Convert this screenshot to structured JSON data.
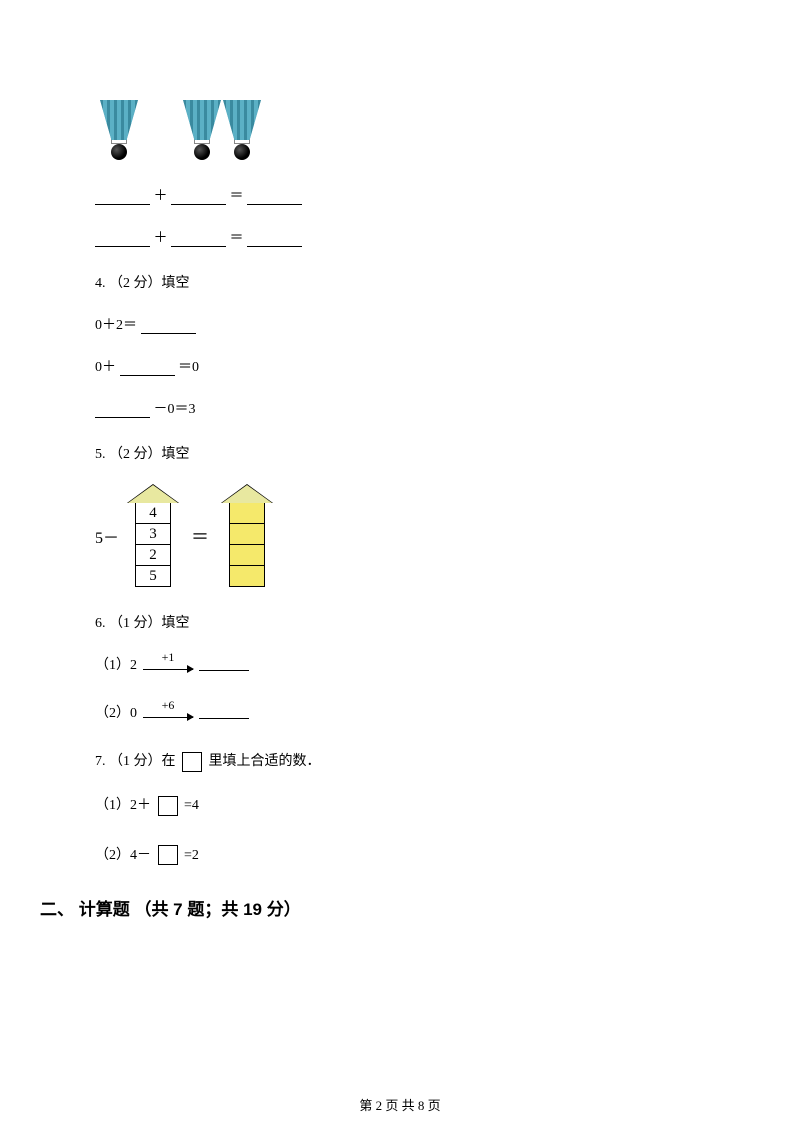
{
  "shuttlecocks": {
    "group1_count": 1,
    "group2_count": 2,
    "cap_color": "#4a9db5",
    "ball_color": "#000000"
  },
  "equations": {
    "line1": {
      "op": "＋",
      "eq": "＝"
    },
    "line2": {
      "op": "＋",
      "eq": "＝"
    }
  },
  "q4": {
    "header": "4. （2 分）填空",
    "line1_prefix": "0＋2＝",
    "line2_prefix": "0＋",
    "line2_suffix": "＝0",
    "line3_suffix": "－0＝3"
  },
  "q5": {
    "header": "5. （2 分）填空",
    "left_label": "5－",
    "tower_values": [
      "4",
      "3",
      "2",
      "5"
    ],
    "equals": "＝",
    "roof_fill": "#e8e8a0",
    "cell_yellow": "#f5e96b"
  },
  "q6": {
    "header": "6. （1 分）填空",
    "sub1_label": "（1）2",
    "sub1_arrow": "+1",
    "sub2_label": "（2）0",
    "sub2_arrow": "+6"
  },
  "q7": {
    "header_prefix": "7. （1 分）在",
    "header_suffix": "里填上合适的数．",
    "sub1_prefix": "（1）2＋",
    "sub1_suffix": "=4",
    "sub2_prefix": "（2）4－",
    "sub2_suffix": "=2"
  },
  "section2": {
    "title": "二、 计算题 （共 7 题；共 19 分）"
  },
  "footer": {
    "text": "第 2 页 共 8 页"
  }
}
